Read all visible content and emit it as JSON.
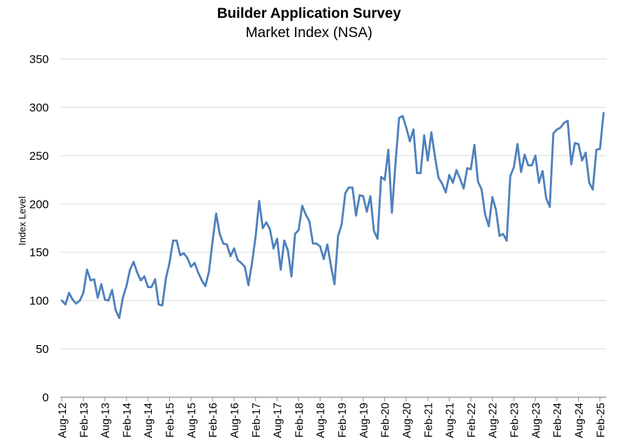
{
  "chart_data": {
    "type": "line",
    "title": "Builder Application Survey",
    "subtitle": "Market Index (NSA)",
    "xlabel": "",
    "ylabel": "Index Level",
    "ylim": [
      0,
      350
    ],
    "yticks": [
      0,
      50,
      100,
      150,
      200,
      250,
      300,
      350
    ],
    "xtick_labels": [
      "Aug-12",
      "Feb-13",
      "Aug-13",
      "Feb-14",
      "Aug-14",
      "Feb-15",
      "Aug-15",
      "Feb-16",
      "Aug-16",
      "Feb-17",
      "Aug-17",
      "Feb-18",
      "Aug-18",
      "Feb-19",
      "Aug-19",
      "Feb-20",
      "Aug-20",
      "Feb-21",
      "Aug-21",
      "Feb-22",
      "Aug-22",
      "Feb-23",
      "Aug-23",
      "Feb-24",
      "Aug-24",
      "Feb-25"
    ],
    "grid": "horizontal",
    "legend": "none",
    "line_color": "#4f81bd",
    "series": [
      {
        "x": [
          "Aug-12",
          "Sep-12",
          "Oct-12",
          "Nov-12",
          "Dec-12",
          "Jan-13",
          "Feb-13",
          "Mar-13",
          "Apr-13",
          "May-13",
          "Jun-13",
          "Jul-13",
          "Aug-13",
          "Sep-13",
          "Oct-13",
          "Nov-13",
          "Dec-13",
          "Jan-14",
          "Feb-14",
          "Mar-14",
          "Apr-14",
          "May-14",
          "Jun-14",
          "Jul-14",
          "Aug-14",
          "Sep-14",
          "Oct-14",
          "Nov-14",
          "Dec-14",
          "Jan-15",
          "Feb-15",
          "Mar-15",
          "Apr-15",
          "May-15",
          "Jun-15",
          "Jul-15",
          "Aug-15",
          "Sep-15",
          "Oct-15",
          "Nov-15",
          "Dec-15",
          "Jan-16",
          "Feb-16",
          "Mar-16",
          "Apr-16",
          "May-16",
          "Jun-16",
          "Jul-16",
          "Aug-16",
          "Sep-16",
          "Oct-16",
          "Nov-16",
          "Dec-16",
          "Jan-17",
          "Feb-17",
          "Mar-17",
          "Apr-17",
          "May-17",
          "Jun-17",
          "Jul-17",
          "Aug-17",
          "Sep-17",
          "Oct-17",
          "Nov-17",
          "Dec-17",
          "Jan-18",
          "Feb-18",
          "Mar-18",
          "Apr-18",
          "May-18",
          "Jun-18",
          "Jul-18",
          "Aug-18",
          "Sep-18",
          "Oct-18",
          "Nov-18",
          "Dec-18",
          "Jan-19",
          "Feb-19",
          "Mar-19",
          "Apr-19",
          "May-19",
          "Jun-19",
          "Jul-19",
          "Aug-19",
          "Sep-19",
          "Oct-19",
          "Nov-19",
          "Dec-19",
          "Jan-20",
          "Feb-20",
          "Mar-20",
          "Apr-20",
          "May-20",
          "Jun-20",
          "Jul-20",
          "Aug-20",
          "Sep-20",
          "Oct-20",
          "Nov-20",
          "Dec-20",
          "Jan-21",
          "Feb-21",
          "Mar-21",
          "Apr-21",
          "May-21",
          "Jun-21",
          "Jul-21",
          "Aug-21",
          "Sep-21",
          "Oct-21",
          "Nov-21",
          "Dec-21",
          "Jan-22",
          "Feb-22",
          "Mar-22",
          "Apr-22",
          "May-22",
          "Jun-22",
          "Jul-22",
          "Aug-22",
          "Sep-22",
          "Oct-22",
          "Nov-22",
          "Dec-22",
          "Jan-23",
          "Feb-23",
          "Mar-23",
          "Apr-23",
          "May-23",
          "Jun-23",
          "Jul-23",
          "Aug-23",
          "Sep-23",
          "Oct-23",
          "Nov-23",
          "Dec-23",
          "Jan-24",
          "Feb-24",
          "Mar-24",
          "Apr-24",
          "May-24",
          "Jun-24",
          "Jul-24",
          "Aug-24",
          "Sep-24",
          "Oct-24",
          "Nov-24",
          "Dec-24",
          "Jan-25",
          "Feb-25",
          "Mar-25"
        ],
        "values": [
          100,
          96,
          108,
          101,
          97,
          100,
          108,
          132,
          121,
          122,
          103,
          117,
          101,
          100,
          111,
          90,
          82,
          103,
          115,
          132,
          140,
          129,
          121,
          125,
          114,
          114,
          122,
          96,
          95,
          123,
          139,
          162,
          162,
          147,
          149,
          144,
          135,
          139,
          129,
          121,
          115,
          130,
          161,
          190,
          169,
          159,
          158,
          146,
          154,
          142,
          139,
          135,
          116,
          139,
          166,
          203,
          175,
          181,
          174,
          154,
          164,
          132,
          162,
          152,
          125,
          169,
          173,
          198,
          189,
          182,
          159,
          159,
          156,
          143,
          158,
          136,
          117,
          167,
          179,
          211,
          217,
          217,
          188,
          209,
          208,
          192,
          208,
          172,
          164,
          228,
          225,
          256,
          191,
          242,
          289,
          291,
          279,
          265,
          277,
          232,
          232,
          271,
          245,
          274,
          249,
          227,
          221,
          212,
          230,
          222,
          235,
          226,
          216,
          237,
          236,
          261,
          223,
          215,
          189,
          177,
          207,
          194,
          167,
          169,
          162,
          229,
          238,
          262,
          233,
          251,
          240,
          240,
          250,
          222,
          234,
          206,
          197,
          273,
          277,
          279,
          284,
          286,
          241,
          263,
          262,
          245,
          253,
          222,
          215,
          256,
          257,
          294
        ]
      }
    ]
  }
}
